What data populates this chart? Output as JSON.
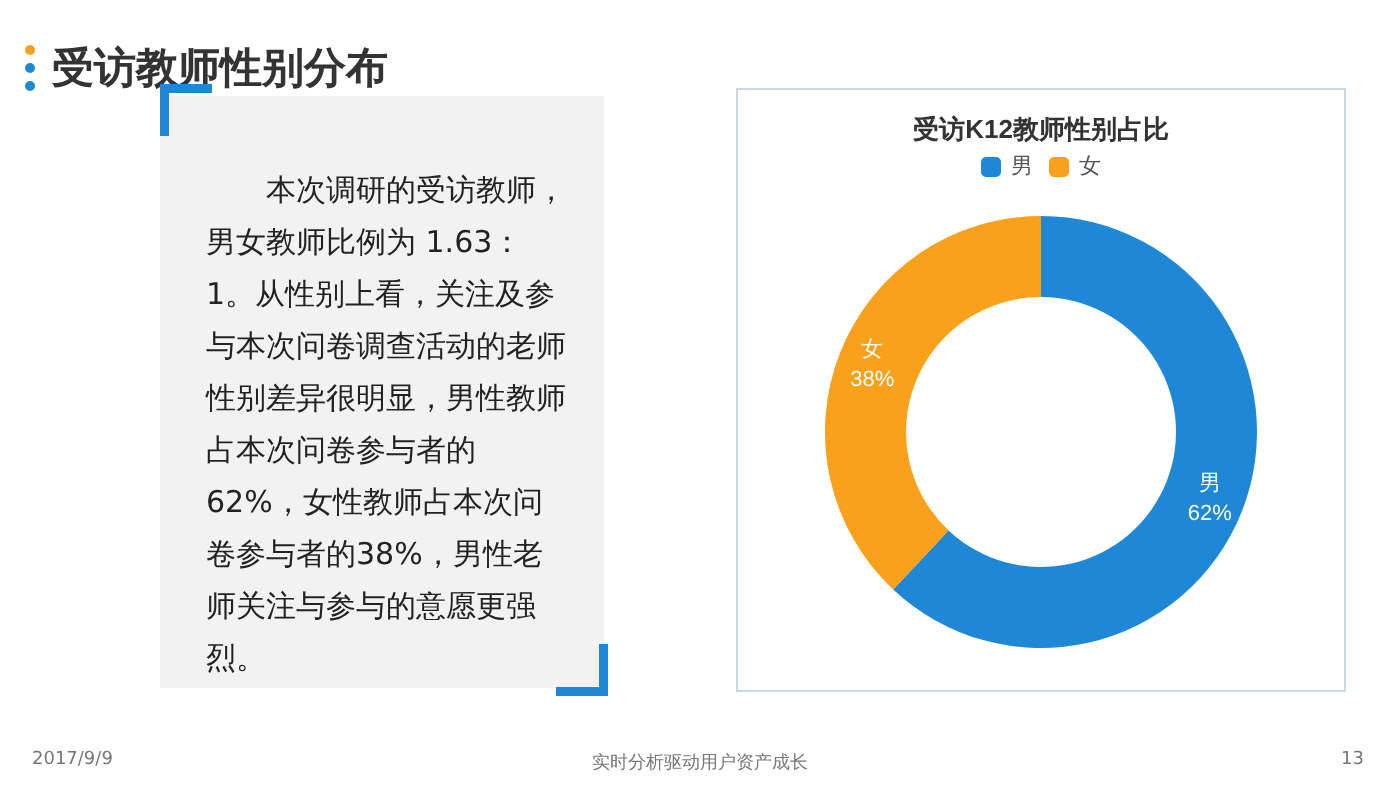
{
  "chart_data": [
    {
      "type": "other",
      "title": "受访教师性别分布",
      "annotations": [
        "本次调研的受访教师，男女教师比例为 1.63：1。从性别上看，关注及参与本次问卷调查活动的老师性别差异很明显，男性教师占本次问卷参与者的62%，女性教师占本次问卷参与者的38%，男性老师关注与参与的意愿更强烈。",
        "2017/9/9",
        "实时分析驱动用户资产成长",
        "13"
      ]
    },
    {
      "type": "donut",
      "title": "受访K12教师性别占比",
      "categories": [
        "男",
        "女"
      ],
      "values": [
        62,
        38
      ],
      "value_labels": [
        "62%",
        "38%"
      ],
      "colors": [
        "#1e88d6",
        "#f9a11b"
      ],
      "legend": "top"
    }
  ]
}
